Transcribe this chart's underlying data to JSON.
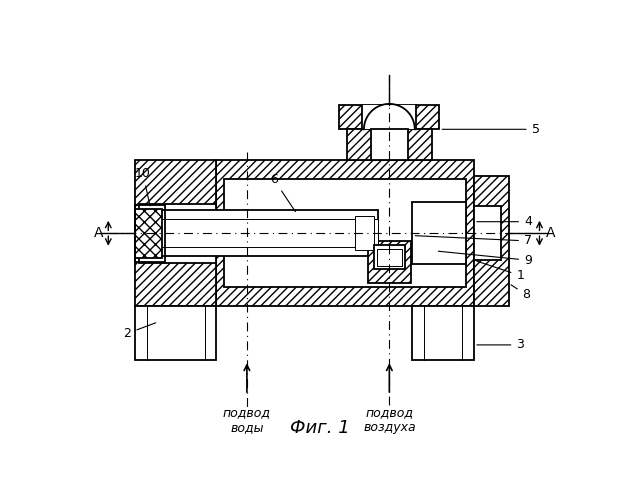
{
  "title": "Фиг. 1",
  "label_water": "подвод\nводы",
  "label_air": "подвод\nвоздуха",
  "bg_color": "#ffffff",
  "lw_main": 1.3,
  "lw_thin": 0.7,
  "hatch_density": "////",
  "A_label": "А"
}
